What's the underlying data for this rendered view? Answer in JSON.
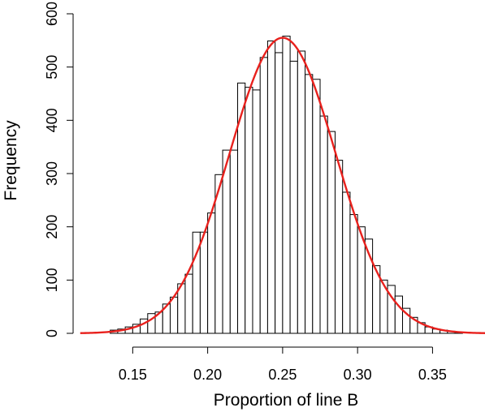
{
  "chart_data": {
    "type": "bar",
    "title": "",
    "xlabel": "Proportion of line B",
    "ylabel": "Frequency",
    "bin_width": 0.005,
    "bins_start": [
      0.135,
      0.14,
      0.145,
      0.15,
      0.155,
      0.16,
      0.165,
      0.17,
      0.175,
      0.18,
      0.185,
      0.19,
      0.195,
      0.2,
      0.205,
      0.21,
      0.215,
      0.22,
      0.225,
      0.23,
      0.235,
      0.24,
      0.245,
      0.25,
      0.255,
      0.26,
      0.265,
      0.27,
      0.275,
      0.28,
      0.285,
      0.29,
      0.295,
      0.3,
      0.305,
      0.31,
      0.315,
      0.32,
      0.325,
      0.33,
      0.335,
      0.34,
      0.345,
      0.35,
      0.355,
      0.36,
      0.365
    ],
    "values": [
      6,
      8,
      12,
      17,
      27,
      37,
      40,
      55,
      68,
      93,
      111,
      190,
      190,
      226,
      298,
      344,
      344,
      470,
      462,
      457,
      518,
      549,
      527,
      558,
      511,
      530,
      486,
      477,
      408,
      379,
      325,
      265,
      223,
      200,
      177,
      127,
      100,
      90,
      70,
      47,
      30,
      20,
      12,
      8,
      6,
      4,
      2
    ],
    "xlim": [
      0.12,
      0.385
    ],
    "ylim": [
      0,
      600
    ],
    "xticks": [
      0.15,
      0.2,
      0.25,
      0.3,
      0.35
    ],
    "xtick_labels": [
      "0.15",
      "0.20",
      "0.25",
      "0.30",
      "0.35"
    ],
    "yticks": [
      0,
      100,
      200,
      300,
      400,
      500,
      600
    ],
    "ytick_labels": [
      "0",
      "100",
      "200",
      "300",
      "400",
      "500",
      "600"
    ],
    "curve": {
      "type": "normal-density",
      "mean": 0.25,
      "sd": 0.0355,
      "peak": 555,
      "x_range": [
        0.115,
        0.385
      ],
      "color": "#e8211d"
    },
    "bar_fill": "#ffffff",
    "bar_stroke": "#000000",
    "grid": false,
    "legend": "none"
  }
}
